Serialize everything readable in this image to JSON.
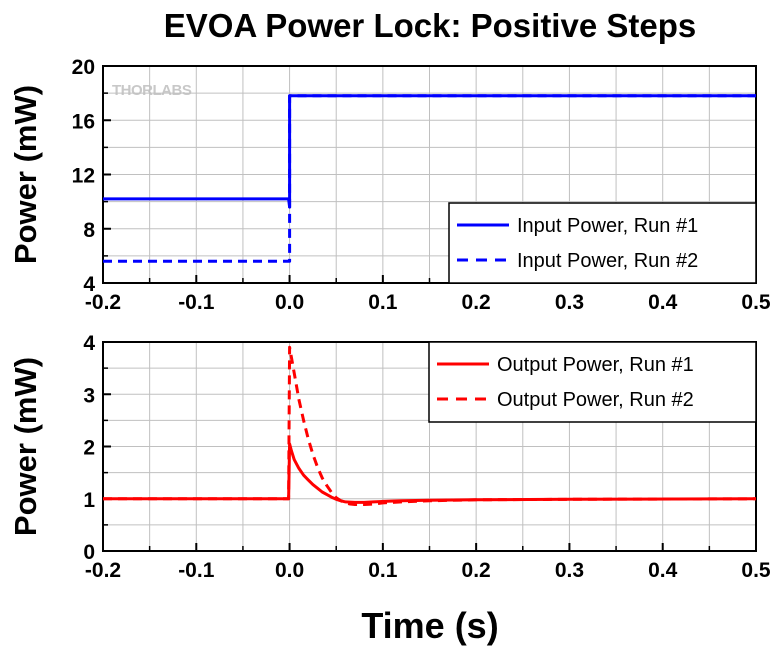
{
  "title": "EVOA Power Lock: Positive Steps",
  "watermark": "THORLABS",
  "xlabel": "Time (s)",
  "chart_data": [
    {
      "type": "line",
      "title": "EVOA Power Lock: Positive Steps",
      "xlabel": "",
      "ylabel": "Power (mW)",
      "xlim": [
        -0.2,
        0.5
      ],
      "ylim": [
        4,
        20
      ],
      "xticks": [
        "-0.2",
        "-0.1",
        "0.0",
        "0.1",
        "0.2",
        "0.3",
        "0.4",
        "0.5"
      ],
      "yticks": [
        "4",
        "8",
        "12",
        "16",
        "20"
      ],
      "grid": true,
      "legend_position": "bottom-right",
      "series": [
        {
          "name": "Input Power, Run #1",
          "color": "#0000ff",
          "style": "solid",
          "x": [
            -0.2,
            -0.001,
            0.0,
            0.0,
            0.5
          ],
          "y": [
            10.2,
            10.2,
            9.6,
            17.8,
            17.8
          ]
        },
        {
          "name": "Input Power, Run #2",
          "color": "#0000ff",
          "style": "dashed",
          "x": [
            -0.2,
            -0.001,
            0.0,
            0.0,
            0.5
          ],
          "y": [
            5.6,
            5.6,
            5.6,
            17.8,
            17.8
          ]
        }
      ]
    },
    {
      "type": "line",
      "xlabel": "Time (s)",
      "ylabel": "Power (mW)",
      "xlim": [
        -0.2,
        0.5
      ],
      "ylim": [
        0,
        4
      ],
      "xticks": [
        "-0.2",
        "-0.1",
        "0.0",
        "0.1",
        "0.2",
        "0.3",
        "0.4",
        "0.5"
      ],
      "yticks": [
        "0",
        "1",
        "2",
        "3",
        "4"
      ],
      "grid": true,
      "legend_position": "top-right",
      "series": [
        {
          "name": "Output Power, Run #1",
          "color": "#ff0000",
          "style": "solid",
          "x": [
            -0.2,
            -0.001,
            0.0,
            0.002,
            0.005,
            0.01,
            0.015,
            0.02,
            0.025,
            0.03,
            0.035,
            0.04,
            0.045,
            0.05,
            0.055,
            0.06,
            0.07,
            0.08,
            0.09,
            0.1,
            0.12,
            0.15,
            0.2,
            0.3,
            0.5
          ],
          "y": [
            1.0,
            1.0,
            2.05,
            1.92,
            1.75,
            1.58,
            1.45,
            1.36,
            1.27,
            1.2,
            1.13,
            1.08,
            1.03,
            0.99,
            0.96,
            0.94,
            0.93,
            0.93,
            0.94,
            0.95,
            0.96,
            0.97,
            0.98,
            0.99,
            1.0
          ]
        },
        {
          "name": "Output Power, Run #2",
          "color": "#ff0000",
          "style": "dashed",
          "x": [
            -0.2,
            -0.001,
            0.0,
            0.003,
            0.006,
            0.01,
            0.015,
            0.02,
            0.025,
            0.03,
            0.035,
            0.04,
            0.045,
            0.05,
            0.055,
            0.06,
            0.065,
            0.07,
            0.08,
            0.09,
            0.1,
            0.12,
            0.15,
            0.2,
            0.3,
            0.5
          ],
          "y": [
            1.0,
            1.0,
            3.9,
            3.6,
            3.3,
            2.9,
            2.5,
            2.15,
            1.85,
            1.6,
            1.4,
            1.25,
            1.12,
            1.02,
            0.96,
            0.92,
            0.9,
            0.89,
            0.89,
            0.9,
            0.92,
            0.94,
            0.96,
            0.98,
            0.99,
            1.0
          ]
        }
      ]
    }
  ]
}
